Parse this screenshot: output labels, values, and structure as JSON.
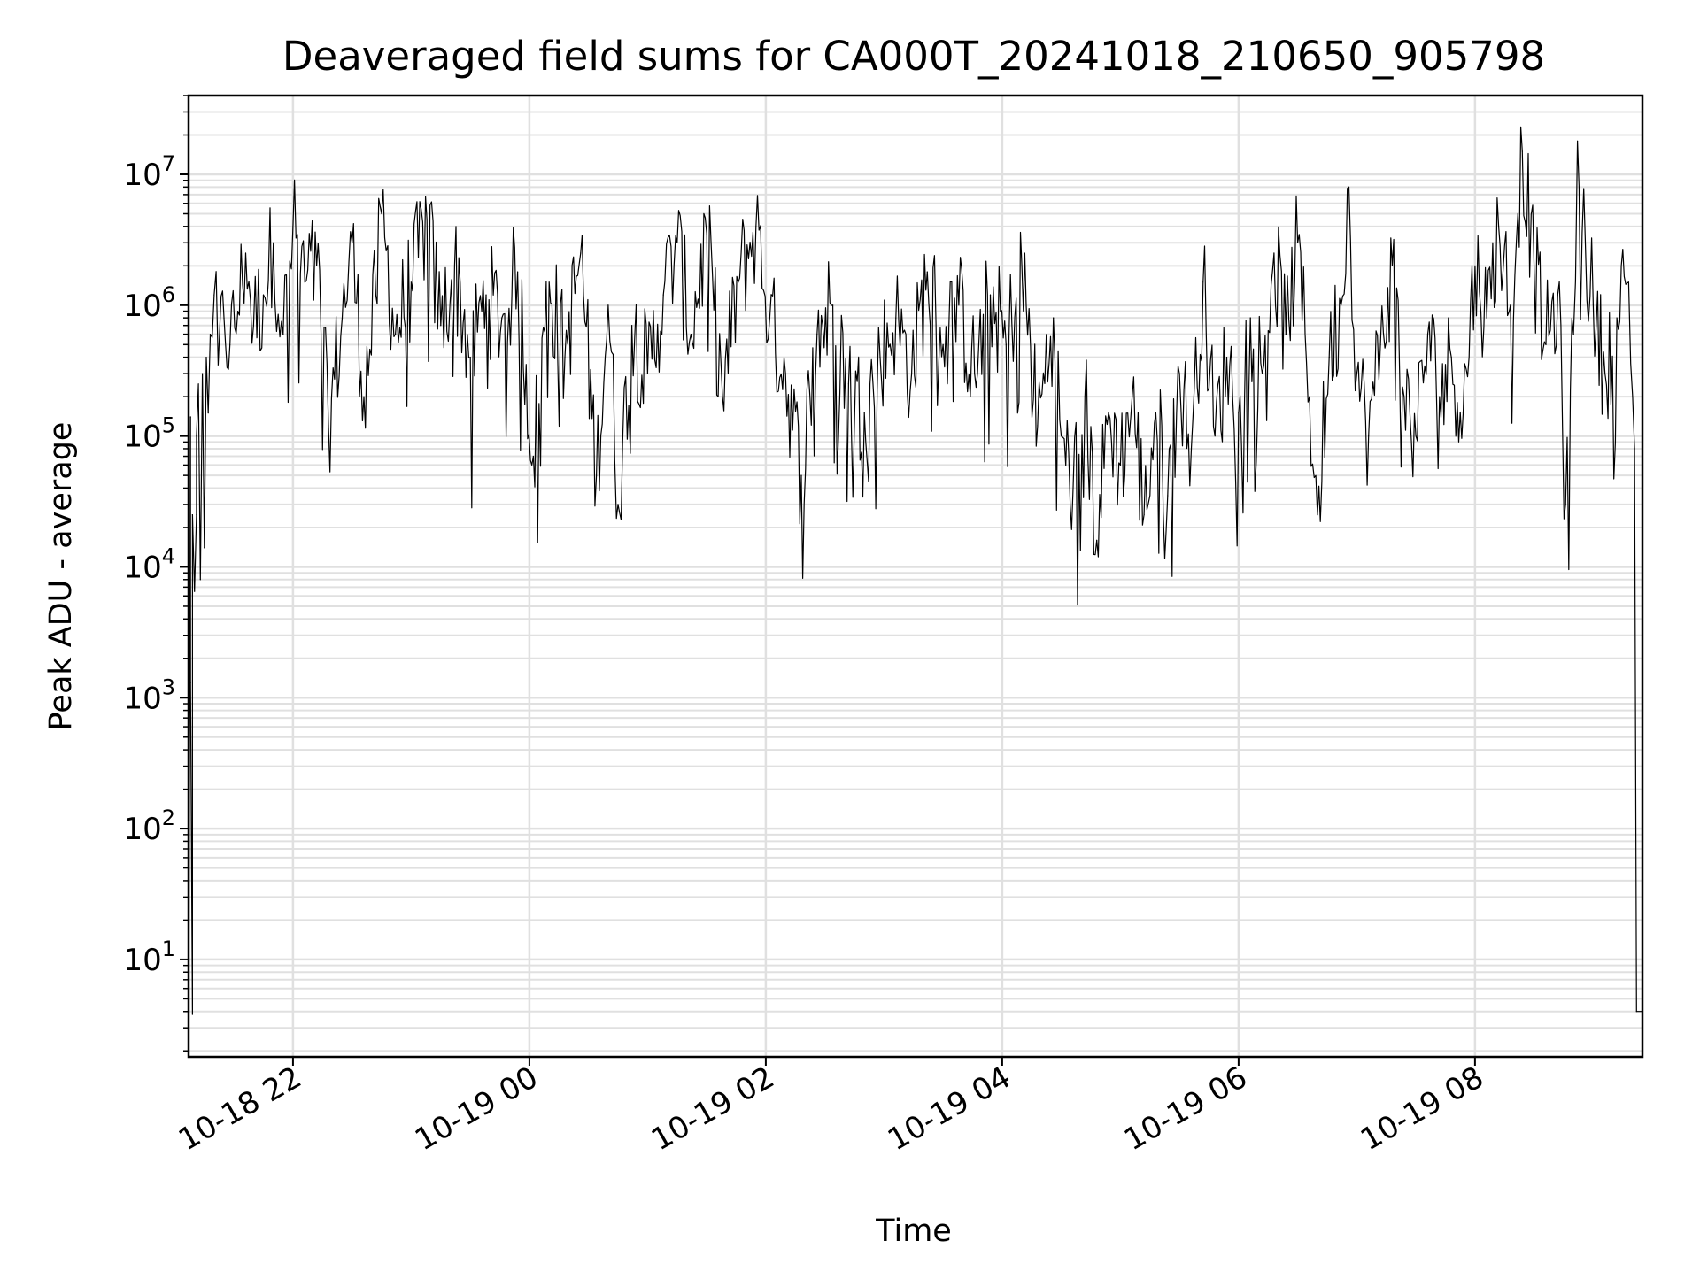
{
  "chart_data": {
    "type": "line",
    "title": "Deaveraged field sums for CA000T_20241018_210650_905798",
    "xlabel": "Time",
    "ylabel": "Peak ADU - average",
    "yscale": "log",
    "ylim": [
      1.8,
      40000000
    ],
    "xlim": [
      "2024-10-18 21:07",
      "2024-10-19 09:25"
    ],
    "grid": true,
    "line_color": "#000000",
    "grid_color": "#e0e0e0",
    "x_ticks": [
      {
        "value": "2024-10-18 22:00",
        "label": "10-18 22"
      },
      {
        "value": "2024-10-19 00:00",
        "label": "10-19 00"
      },
      {
        "value": "2024-10-19 02:00",
        "label": "10-19 02"
      },
      {
        "value": "2024-10-19 04:00",
        "label": "10-19 04"
      },
      {
        "value": "2024-10-19 06:00",
        "label": "10-19 06"
      },
      {
        "value": "2024-10-19 08:00",
        "label": "10-19 08"
      }
    ],
    "y_ticks": [
      {
        "value": 10,
        "base": "10",
        "exp": "1"
      },
      {
        "value": 100,
        "base": "10",
        "exp": "2"
      },
      {
        "value": 1000,
        "base": "10",
        "exp": "3"
      },
      {
        "value": 10000,
        "base": "10",
        "exp": "4"
      },
      {
        "value": 100000,
        "base": "10",
        "exp": "5"
      },
      {
        "value": 1000000,
        "base": "10",
        "exp": "6"
      },
      {
        "value": 10000000,
        "base": "10",
        "exp": "7"
      }
    ],
    "series": [
      {
        "values": [
          [
            "2024-10-18 21:07",
            1.8
          ],
          [
            "2024-10-18 21:08",
            140000
          ],
          [
            "2024-10-18 21:08",
            1300
          ],
          [
            "2024-10-18 21:09",
            3.8
          ],
          [
            "2024-10-18 21:09",
            25000
          ],
          [
            "2024-10-18 21:10",
            6500
          ],
          [
            "2024-10-18 21:11",
            25000
          ],
          [
            "2024-10-18 21:11",
            100000
          ],
          [
            "2024-10-18 21:12",
            250000
          ],
          [
            "2024-10-18 21:13",
            8000
          ],
          [
            "2024-10-18 21:14",
            300000
          ],
          [
            "2024-10-18 21:15",
            14000
          ],
          [
            "2024-10-18 21:16",
            400000
          ],
          [
            "2024-10-18 21:17",
            150000
          ],
          [
            "2024-10-18 21:18",
            600000
          ],
          [
            "2024-10-18 21:20",
            1200000
          ],
          [
            "2024-10-18 21:22",
            350000
          ],
          [
            "2024-10-18 21:25",
            800000
          ],
          [
            "2024-10-18 21:28",
            500000
          ],
          [
            "2024-10-18 21:32",
            900000
          ],
          [
            "2024-10-18 21:36",
            2500000
          ],
          [
            "2024-10-18 21:40",
            700000
          ],
          [
            "2024-10-18 21:45",
            1200000
          ],
          [
            "2024-10-18 21:50",
            3000000
          ],
          [
            "2024-10-18 21:55",
            600000
          ],
          [
            "2024-10-18 22:00",
            4000000
          ],
          [
            "2024-10-18 22:06",
            1500000
          ],
          [
            "2024-10-18 22:12",
            2000000
          ],
          [
            "2024-10-18 22:18",
            120000
          ],
          [
            "2024-10-18 22:25",
            800000
          ],
          [
            "2024-10-18 22:30",
            3000000
          ],
          [
            "2024-10-18 22:36",
            200000
          ],
          [
            "2024-10-18 22:42",
            1200000
          ],
          [
            "2024-10-18 22:45",
            5000000
          ],
          [
            "2024-10-18 22:52",
            600000
          ],
          [
            "2024-10-18 23:00",
            1500000
          ],
          [
            "2024-10-18 23:08",
            4500000
          ],
          [
            "2024-10-18 23:15",
            700000
          ],
          [
            "2024-10-18 23:22",
            2000000
          ],
          [
            "2024-10-18 23:30",
            400000
          ],
          [
            "2024-10-18 23:38",
            1200000
          ],
          [
            "2024-10-18 23:46",
            800000
          ],
          [
            "2024-10-18 23:54",
            1800000
          ],
          [
            "2024-10-19 00:02",
            70000
          ],
          [
            "2024-10-19 00:10",
            1500000
          ],
          [
            "2024-10-19 00:18",
            400000
          ],
          [
            "2024-10-19 00:26",
            2500000
          ],
          [
            "2024-10-19 00:34",
            50000
          ],
          [
            "2024-10-19 00:40",
            1000000
          ],
          [
            "2024-10-19 00:45",
            30000
          ],
          [
            "2024-10-19 00:52",
            700000
          ],
          [
            "2024-10-19 01:00",
            300000
          ],
          [
            "2024-10-19 01:08",
            1200000
          ],
          [
            "2024-10-19 01:15",
            3000000
          ],
          [
            "2024-10-19 01:22",
            600000
          ],
          [
            "2024-10-19 01:30",
            3500000
          ],
          [
            "2024-10-19 01:38",
            200000
          ],
          [
            "2024-10-19 01:46",
            1500000
          ],
          [
            "2024-10-19 01:55",
            4000000
          ],
          [
            "2024-10-19 02:02",
            800000
          ],
          [
            "2024-10-19 02:10",
            300000
          ],
          [
            "2024-10-19 02:18",
            50000
          ],
          [
            "2024-10-19 02:26",
            600000
          ],
          [
            "2024-10-19 02:34",
            1000000
          ],
          [
            "2024-10-19 02:42",
            250000
          ],
          [
            "2024-10-19 02:50",
            150000
          ],
          [
            "2024-10-19 02:58",
            400000
          ],
          [
            "2024-10-19 03:06",
            800000
          ],
          [
            "2024-10-19 03:14",
            300000
          ],
          [
            "2024-10-19 03:22",
            1800000
          ],
          [
            "2024-10-19 03:30",
            500000
          ],
          [
            "2024-10-19 03:38",
            1000000
          ],
          [
            "2024-10-19 03:46",
            300000
          ],
          [
            "2024-10-19 03:54",
            1200000
          ],
          [
            "2024-10-19 04:02",
            500000
          ],
          [
            "2024-10-19 04:10",
            2000000
          ],
          [
            "2024-10-19 04:18",
            120000
          ],
          [
            "2024-10-19 04:26",
            800000
          ],
          [
            "2024-10-19 04:30",
            100000
          ],
          [
            "2024-10-19 04:36",
            40000
          ],
          [
            "2024-10-19 04:42",
            200000
          ],
          [
            "2024-10-19 04:48",
            16000
          ],
          [
            "2024-10-19 04:54",
            150000
          ],
          [
            "2024-10-19 05:00",
            60000
          ],
          [
            "2024-10-19 05:06",
            200000
          ],
          [
            "2024-10-19 05:12",
            25000
          ],
          [
            "2024-10-19 05:18",
            150000
          ],
          [
            "2024-10-19 05:24",
            35000
          ],
          [
            "2024-10-19 05:30",
            300000
          ],
          [
            "2024-10-19 05:36",
            80000
          ],
          [
            "2024-10-19 05:42",
            1500000
          ],
          [
            "2024-10-19 05:48",
            100000
          ],
          [
            "2024-10-19 05:54",
            400000
          ],
          [
            "2024-10-19 06:00",
            150000
          ],
          [
            "2024-10-19 06:06",
            800000
          ],
          [
            "2024-10-19 06:12",
            300000
          ],
          [
            "2024-10-19 06:18",
            2500000
          ],
          [
            "2024-10-19 06:24",
            600000
          ],
          [
            "2024-10-19 06:30",
            3000000
          ],
          [
            "2024-10-19 06:36",
            200000
          ],
          [
            "2024-10-19 06:40",
            25000
          ],
          [
            "2024-10-19 06:46",
            400000
          ],
          [
            "2024-10-19 06:52",
            1000000
          ],
          [
            "2024-10-19 06:56",
            8000000
          ],
          [
            "2024-10-19 07:00",
            300000
          ],
          [
            "2024-10-19 07:06",
            100000
          ],
          [
            "2024-10-19 07:12",
            500000
          ],
          [
            "2024-10-19 07:18",
            2000000
          ],
          [
            "2024-10-19 07:24",
            200000
          ],
          [
            "2024-10-19 07:30",
            100000
          ],
          [
            "2024-10-19 07:36",
            600000
          ],
          [
            "2024-10-19 07:42",
            200000
          ],
          [
            "2024-10-19 07:48",
            400000
          ],
          [
            "2024-10-19 07:54",
            150000
          ],
          [
            "2024-10-19 08:00",
            2000000
          ],
          [
            "2024-10-19 08:06",
            800000
          ],
          [
            "2024-10-19 08:12",
            4000000
          ],
          [
            "2024-10-19 08:18",
            1000000
          ],
          [
            "2024-10-19 08:24",
            15000000
          ],
          [
            "2024-10-19 08:30",
            2000000
          ],
          [
            "2024-10-19 08:36",
            500000
          ],
          [
            "2024-10-19 08:42",
            1200000
          ],
          [
            "2024-10-19 08:46",
            30000
          ],
          [
            "2024-10-19 08:50",
            600000
          ],
          [
            "2024-10-19 08:52",
            18000000
          ],
          [
            "2024-10-19 08:56",
            3000000
          ],
          [
            "2024-10-19 09:00",
            1000000
          ],
          [
            "2024-10-19 09:06",
            300000
          ],
          [
            "2024-10-19 09:12",
            800000
          ],
          [
            "2024-10-19 09:18",
            1500000
          ],
          [
            "2024-10-19 09:20",
            200000
          ],
          [
            "2024-10-19 09:21",
            80000
          ],
          [
            "2024-10-19 09:22",
            4
          ],
          [
            "2024-10-19 09:25",
            4
          ]
        ]
      }
    ]
  }
}
